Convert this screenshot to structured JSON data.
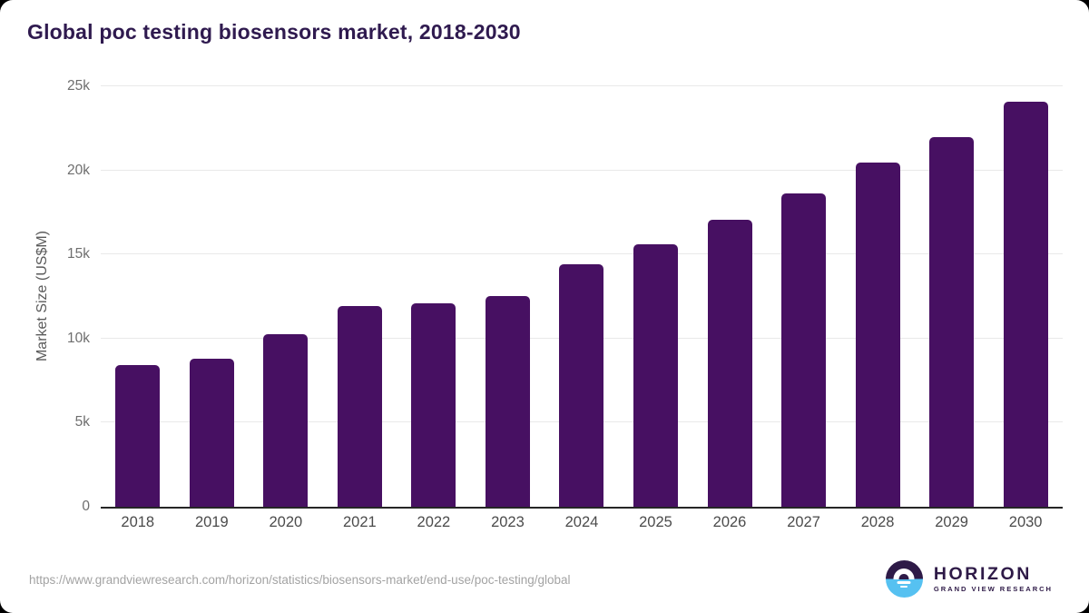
{
  "page": {
    "title": "Global poc testing biosensors market, 2018-2030",
    "footer_url": "https://www.grandviewresearch.com/horizon/statistics/biosensors-market/end-use/poc-testing/global",
    "logo": {
      "name": "HORIZON",
      "subtitle": "GRAND VIEW RESEARCH"
    }
  },
  "colors": {
    "bar": "#471062",
    "title": "#2f1a4f",
    "grid": "#e9e9e9",
    "axis_line": "#262626",
    "tick_text": "#6e6e6e",
    "url_text": "#a3a3a3",
    "logo_purple": "#2e1a47",
    "logo_blue": "#56c1f1"
  },
  "chart_data": {
    "type": "bar",
    "title": "Global poc testing biosensors market, 2018-2030",
    "categories": [
      "2018",
      "2019",
      "2020",
      "2021",
      "2022",
      "2023",
      "2024",
      "2025",
      "2026",
      "2027",
      "2028",
      "2029",
      "2030"
    ],
    "values": [
      8450,
      8800,
      10250,
      11950,
      12100,
      12550,
      14400,
      15600,
      17050,
      18650,
      20450,
      22000,
      24100
    ],
    "xlabel": "",
    "ylabel": "Market Size (US$M)",
    "ylim": [
      0,
      25000
    ],
    "yticks": [
      {
        "value": 0,
        "label": "0"
      },
      {
        "value": 5000,
        "label": "5k"
      },
      {
        "value": 10000,
        "label": "10k"
      },
      {
        "value": 15000,
        "label": "15k"
      },
      {
        "value": 20000,
        "label": "20k"
      },
      {
        "value": 25000,
        "label": "25k"
      }
    ],
    "grid": "horizontal",
    "legend": "none",
    "bar_color": "#471062"
  }
}
